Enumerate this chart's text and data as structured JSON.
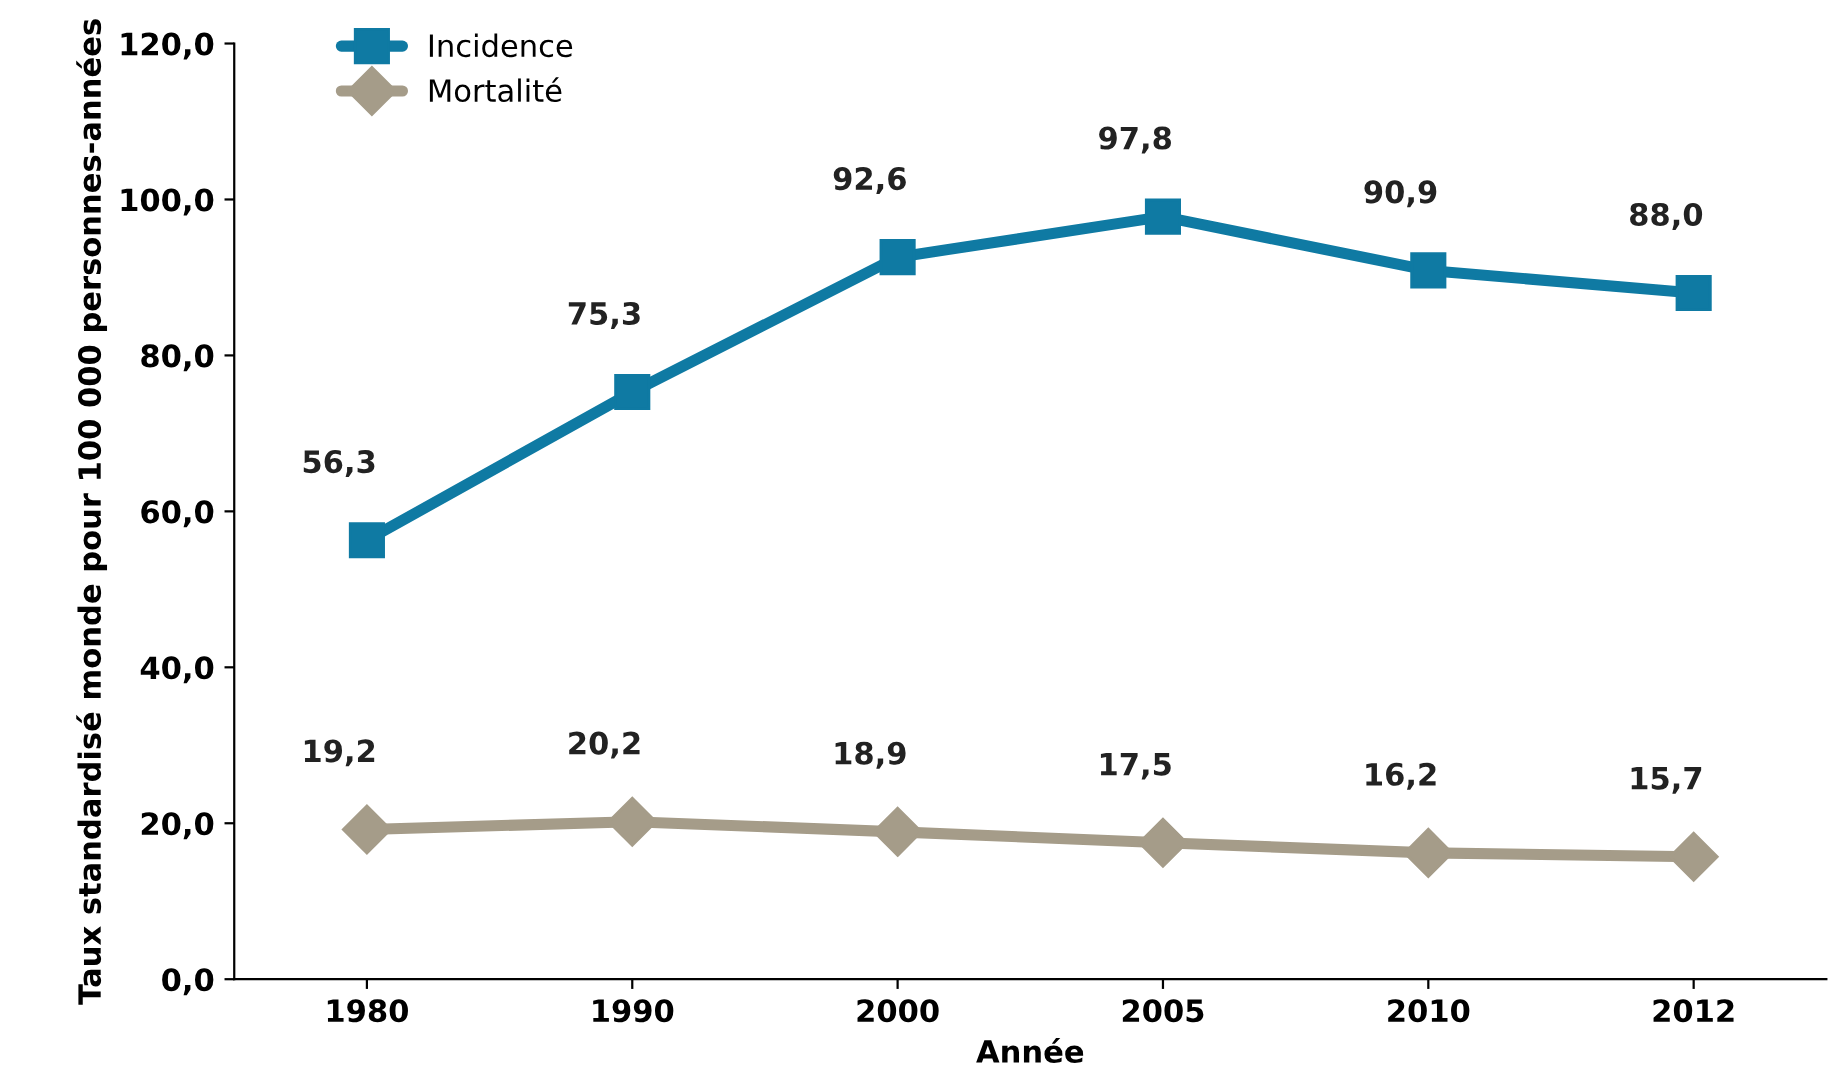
{
  "chart_data": {
    "type": "line",
    "xlabel": "Année",
    "ylabel": "Taux standardisé monde pour 100 000 personnes-années",
    "categories": [
      "1980",
      "1990",
      "2000",
      "2005",
      "2010",
      "2012"
    ],
    "series": [
      {
        "name": "Incidence",
        "color": "#0f7aa3",
        "marker": "square",
        "values": [
          56.3,
          75.3,
          92.6,
          97.8,
          90.9,
          88.0
        ],
        "value_labels": [
          "56,3",
          "75,3",
          "92,6",
          "97,8",
          "90,9",
          "88,0"
        ]
      },
      {
        "name": "Mortalité",
        "color": "#a59c89",
        "marker": "diamond",
        "values": [
          19.2,
          20.2,
          18.9,
          17.5,
          16.2,
          15.7
        ],
        "value_labels": [
          "19,2",
          "20,2",
          "18,9",
          "17,5",
          "16,2",
          "15,7"
        ]
      }
    ],
    "ylim": [
      0,
      120
    ],
    "yticks": [
      {
        "value": 0,
        "label": "0,0"
      },
      {
        "value": 20,
        "label": "20,0"
      },
      {
        "value": 40,
        "label": "40,0"
      },
      {
        "value": 60,
        "label": "60,0"
      },
      {
        "value": 80,
        "label": "80,0"
      },
      {
        "value": 100,
        "label": "100,0"
      },
      {
        "value": 120,
        "label": "120,0"
      }
    ],
    "grid": false,
    "legend": "top left",
    "line_style": "solid"
  }
}
